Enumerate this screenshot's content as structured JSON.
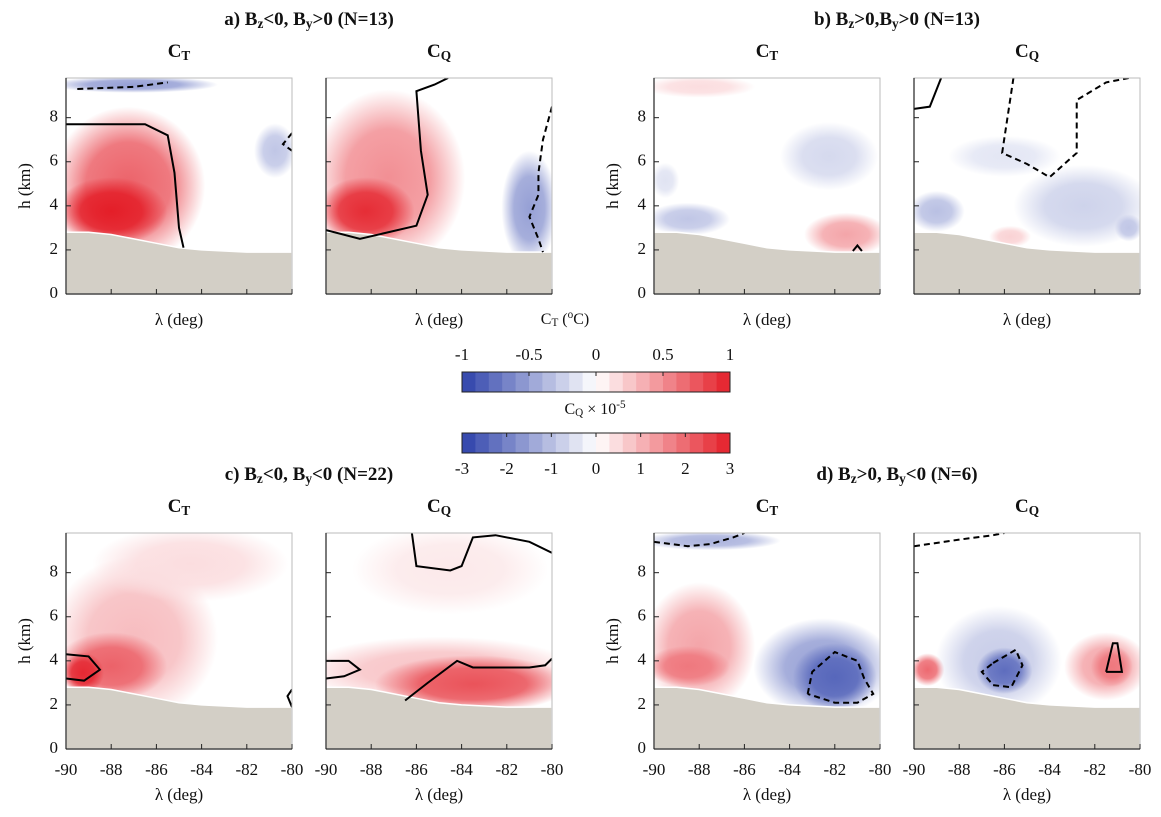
{
  "groups": [
    {
      "title": [
        {
          "text": "a) B"
        },
        {
          "sub": "z"
        },
        {
          "text": "<0, B"
        },
        {
          "sub": "y"
        },
        {
          "text": ">0 (N=13)"
        }
      ]
    },
    {
      "title": [
        {
          "text": "b) B"
        },
        {
          "sub": "z"
        },
        {
          "text": ">0,B"
        },
        {
          "sub": "y"
        },
        {
          "text": ">0 (N=13)"
        }
      ]
    },
    {
      "title": [
        {
          "text": "c) B"
        },
        {
          "sub": "z"
        },
        {
          "text": "<0, B"
        },
        {
          "sub": "y"
        },
        {
          "text": "<0 (N=22)"
        }
      ]
    },
    {
      "title": [
        {
          "text": "d) B"
        },
        {
          "sub": "z"
        },
        {
          "text": ">0, B"
        },
        {
          "sub": "y"
        },
        {
          "text": "<0 (N=6)"
        }
      ]
    }
  ],
  "colorbars": [
    {
      "label": [
        {
          "text": "C"
        },
        {
          "sub": "T"
        },
        {
          "text": " ("
        },
        {
          "sup": "o"
        },
        {
          "text": "C)"
        }
      ],
      "clim": [
        -1,
        1
      ],
      "ticks": [
        -1,
        -0.5,
        0,
        0.5,
        1
      ]
    },
    {
      "label": [
        {
          "text": "C"
        },
        {
          "sub": "Q"
        },
        {
          "text": " × 10"
        },
        {
          "sup": "-5"
        }
      ],
      "clim": [
        -3,
        3
      ],
      "ticks": [
        -3,
        -2,
        -1,
        0,
        1,
        2,
        3
      ]
    }
  ],
  "terrain": {
    "x": [
      -90,
      -89,
      -88,
      -87,
      -86,
      -85,
      -84,
      -83,
      -82,
      -81,
      -80
    ],
    "h": [
      2.8,
      2.8,
      2.7,
      2.5,
      2.3,
      2.1,
      2.0,
      1.95,
      1.9,
      1.9,
      1.9
    ]
  },
  "chart_data": [
    {
      "type": "contour",
      "title": [
        {
          "text": "C"
        },
        {
          "sub": "T"
        }
      ],
      "colorbar": 0,
      "xlabel": "λ (deg)",
      "ylabel": "h (km)",
      "xlim": [
        -90,
        -80
      ],
      "ylim": [
        0,
        9.8
      ],
      "xticks": [
        -90,
        -88,
        -86,
        -84,
        -82,
        -80
      ],
      "yticks": [
        0,
        2,
        4,
        6,
        8
      ],
      "xtick_labels": false,
      "ytick_labels": true,
      "blobs": [
        {
          "x": [
            -90,
            -84.5
          ],
          "y": [
            2,
            7.8
          ],
          "value": 0.7
        },
        {
          "x": [
            -90,
            -86
          ],
          "y": [
            2.5,
            5
          ],
          "value": 1.0
        },
        {
          "x": [
            -90,
            -84
          ],
          "y": [
            9.2,
            9.8
          ],
          "value": -0.5
        },
        {
          "x": [
            -81.5,
            -80
          ],
          "y": [
            5.5,
            7.5
          ],
          "value": -0.3
        }
      ],
      "contours": [
        {
          "style": "solid",
          "x": [
            -90,
            -86.5,
            -85.5,
            -85.2,
            -85.0,
            -84.8
          ],
          "y": [
            7.7,
            7.7,
            7.2,
            5.5,
            3,
            2.1
          ]
        },
        {
          "style": "dashed",
          "x": [
            -89.5,
            -87,
            -85.5
          ],
          "y": [
            9.3,
            9.4,
            9.6
          ]
        },
        {
          "style": "dashed",
          "x": [
            -80,
            -80.4,
            -80
          ],
          "y": [
            7.3,
            6.8,
            6.5
          ]
        }
      ]
    },
    {
      "type": "contour",
      "title": [
        {
          "text": "C"
        },
        {
          "sub": "Q"
        }
      ],
      "colorbar": 1,
      "xlabel": "λ (deg)",
      "xlim": [
        -90,
        -80
      ],
      "ylim": [
        0,
        9.8
      ],
      "xticks": [
        -90,
        -88,
        -86,
        -84,
        -82,
        -80
      ],
      "yticks": [
        0,
        2,
        4,
        6,
        8
      ],
      "xtick_labels": false,
      "ytick_labels": false,
      "blobs": [
        {
          "x": [
            -90,
            -84.5
          ],
          "y": [
            2,
            8.5
          ],
          "value": 1.5
        },
        {
          "x": [
            -90,
            -86.5
          ],
          "y": [
            2.5,
            5
          ],
          "value": 2.8
        },
        {
          "x": [
            -82,
            -80
          ],
          "y": [
            1.8,
            6
          ],
          "value": -1.5
        }
      ],
      "contours": [
        {
          "style": "solid",
          "x": [
            -90,
            -88.5,
            -86,
            -85.5,
            -85.8,
            -86,
            -85.2,
            -84.6
          ],
          "y": [
            2.9,
            2.5,
            3.1,
            4.5,
            6.5,
            9.2,
            9.5,
            9.8
          ]
        },
        {
          "style": "dashed",
          "x": [
            -80,
            -80.4,
            -80.6,
            -80.6,
            -81,
            -80.6,
            -80.4
          ],
          "y": [
            8.5,
            7,
            5.5,
            4.5,
            3.5,
            2.5,
            1.9
          ]
        }
      ]
    },
    {
      "type": "contour",
      "title": [
        {
          "text": "C"
        },
        {
          "sub": "T"
        }
      ],
      "colorbar": 0,
      "xlabel": "λ (deg)",
      "ylabel": "h (km)",
      "xlim": [
        -90,
        -80
      ],
      "ylim": [
        0,
        9.8
      ],
      "xticks": [
        -90,
        -88,
        -86,
        -84,
        -82,
        -80
      ],
      "yticks": [
        0,
        2,
        4,
        6,
        8
      ],
      "xtick_labels": false,
      "ytick_labels": true,
      "blobs": [
        {
          "x": [
            -84,
            -80.5
          ],
          "y": [
            5,
            7.5
          ],
          "value": -0.2
        },
        {
          "x": [
            -90,
            -87
          ],
          "y": [
            2.8,
            4
          ],
          "value": -0.3
        },
        {
          "x": [
            -83,
            -80
          ],
          "y": [
            1.9,
            3.5
          ],
          "value": 0.4
        },
        {
          "x": [
            -90,
            -86
          ],
          "y": [
            9,
            9.8
          ],
          "value": 0.15
        },
        {
          "x": [
            -90,
            -89
          ],
          "y": [
            4.5,
            5.8
          ],
          "value": -0.15
        }
      ],
      "contours": [
        {
          "style": "solid",
          "x": [
            -81.2,
            -81,
            -80.8
          ],
          "y": [
            1.95,
            2.2,
            1.95
          ]
        }
      ]
    },
    {
      "type": "contour",
      "title": [
        {
          "text": "C"
        },
        {
          "sub": "Q"
        }
      ],
      "colorbar": 1,
      "xlabel": "λ (deg)",
      "xlim": [
        -90,
        -80
      ],
      "ylim": [
        0,
        9.8
      ],
      "xticks": [
        -90,
        -88,
        -86,
        -84,
        -82,
        -80
      ],
      "yticks": [
        0,
        2,
        4,
        6,
        8
      ],
      "xtick_labels": false,
      "ytick_labels": false,
      "blobs": [
        {
          "x": [
            -90,
            -88
          ],
          "y": [
            3,
            4.5
          ],
          "value": -1
        },
        {
          "x": [
            -85,
            -80
          ],
          "y": [
            2.5,
            5.5
          ],
          "value": -0.7
        },
        {
          "x": [
            -88,
            -84
          ],
          "y": [
            5.5,
            7
          ],
          "value": -0.4
        },
        {
          "x": [
            -86.5,
            -85
          ],
          "y": [
            2.2,
            3
          ],
          "value": 0.6
        },
        {
          "x": [
            -81,
            -80
          ],
          "y": [
            2.5,
            3.5
          ],
          "value": -0.9
        }
      ],
      "contours": [
        {
          "style": "solid",
          "x": [
            -90,
            -89.3,
            -88.8
          ],
          "y": [
            8.4,
            8.5,
            9.8
          ]
        },
        {
          "style": "dashed",
          "x": [
            -85.6,
            -86.1,
            -85,
            -84,
            -82.8,
            -82.8,
            -81.5,
            -80.5
          ],
          "y": [
            9.8,
            6.4,
            5.9,
            5.3,
            6.4,
            8.8,
            9.6,
            9.8
          ]
        }
      ]
    },
    {
      "type": "contour",
      "title": [
        {
          "text": "C"
        },
        {
          "sub": "T"
        }
      ],
      "colorbar": 0,
      "xlabel": "λ (deg)",
      "ylabel": "h (km)",
      "xlim": [
        -90,
        -80
      ],
      "ylim": [
        0,
        9.8
      ],
      "xticks": [
        -90,
        -88,
        -86,
        -84,
        -82,
        -80
      ],
      "yticks": [
        0,
        2,
        4,
        6,
        8
      ],
      "xtick_labels": true,
      "ytick_labels": true,
      "blobs": [
        {
          "x": [
            -90,
            -84
          ],
          "y": [
            2,
            8
          ],
          "value": 0.3
        },
        {
          "x": [
            -90,
            -86
          ],
          "y": [
            2.5,
            5
          ],
          "value": 0.7
        },
        {
          "x": [
            -90,
            -88.5
          ],
          "y": [
            2.7,
            4.2
          ],
          "value": 0.95
        },
        {
          "x": [
            -88,
            -81
          ],
          "y": [
            7,
            9.8
          ],
          "value": 0.15
        }
      ],
      "contours": [
        {
          "style": "solid",
          "x": [
            -90,
            -89,
            -88.5,
            -89.2,
            -90
          ],
          "y": [
            4.3,
            4.2,
            3.6,
            3.1,
            3.2
          ]
        },
        {
          "style": "solid",
          "x": [
            -80,
            -80.2,
            -80
          ],
          "y": [
            2.7,
            2.4,
            1.9
          ]
        }
      ]
    },
    {
      "type": "contour",
      "title": [
        {
          "text": "C"
        },
        {
          "sub": "Q"
        }
      ],
      "colorbar": 1,
      "xlabel": "λ (deg)",
      "xlim": [
        -90,
        -80
      ],
      "ylim": [
        0,
        9.8
      ],
      "xticks": [
        -90,
        -88,
        -86,
        -84,
        -82,
        -80
      ],
      "yticks": [
        0,
        2,
        4,
        6,
        8
      ],
      "xtick_labels": true,
      "ytick_labels": false,
      "blobs": [
        {
          "x": [
            -90,
            -80
          ],
          "y": [
            2.3,
            4.8
          ],
          "value": 0.8
        },
        {
          "x": [
            -87,
            -80
          ],
          "y": [
            1.9,
            4
          ],
          "value": 2.3
        },
        {
          "x": [
            -88,
            -81
          ],
          "y": [
            6.5,
            9.8
          ],
          "value": 0.3
        }
      ],
      "contours": [
        {
          "style": "solid",
          "x": [
            -90,
            -89,
            -88.5,
            -89.2,
            -90
          ],
          "y": [
            4,
            4,
            3.6,
            3.3,
            3.2
          ]
        },
        {
          "style": "solid",
          "x": [
            -86.5,
            -85.5,
            -84.2,
            -83.5,
            -81,
            -80.3,
            -80
          ],
          "y": [
            2.2,
            3,
            4,
            3.7,
            3.7,
            3.8,
            4.1
          ]
        },
        {
          "style": "solid",
          "x": [
            -86.2,
            -86,
            -84.5,
            -84,
            -83.5,
            -82.5,
            -81,
            -80
          ],
          "y": [
            9.8,
            8.3,
            8.1,
            8.3,
            9.6,
            9.7,
            9.4,
            8.9
          ]
        }
      ]
    },
    {
      "type": "contour",
      "title": [
        {
          "text": "C"
        },
        {
          "sub": "T"
        }
      ],
      "colorbar": 0,
      "xlabel": "λ (deg)",
      "ylabel": "h (km)",
      "xlim": [
        -90,
        -80
      ],
      "ylim": [
        0,
        9.8
      ],
      "xticks": [
        -90,
        -88,
        -86,
        -84,
        -82,
        -80
      ],
      "yticks": [
        0,
        2,
        4,
        6,
        8
      ],
      "xtick_labels": true,
      "ytick_labels": true,
      "blobs": [
        {
          "x": [
            -90,
            -86
          ],
          "y": [
            2.3,
            7
          ],
          "value": 0.4
        },
        {
          "x": [
            -90,
            -87
          ],
          "y": [
            3,
            4.5
          ],
          "value": 0.6
        },
        {
          "x": [
            -85,
            -80
          ],
          "y": [
            1.9,
            5.5
          ],
          "value": -0.5
        },
        {
          "x": [
            -83.5,
            -80.5
          ],
          "y": [
            2,
            4.5
          ],
          "value": -0.8
        },
        {
          "x": [
            -90,
            -85
          ],
          "y": [
            9.1,
            9.8
          ],
          "value": -0.4
        }
      ],
      "contours": [
        {
          "style": "dashed",
          "x": [
            -90,
            -88.5,
            -87.5,
            -86.5,
            -86
          ],
          "y": [
            9.4,
            9.2,
            9.3,
            9.6,
            9.8
          ]
        },
        {
          "style": "dashed",
          "x": [
            -83.2,
            -83,
            -82,
            -81,
            -80.7,
            -80.3,
            -81,
            -82,
            -83.2
          ],
          "y": [
            2.5,
            3.5,
            4.4,
            4,
            3.2,
            2.5,
            2.1,
            2.1,
            2.5
          ]
        }
      ]
    },
    {
      "type": "contour",
      "title": [
        {
          "text": "C"
        },
        {
          "sub": "Q"
        }
      ],
      "colorbar": 1,
      "xlabel": "λ (deg)",
      "xlim": [
        -90,
        -80
      ],
      "ylim": [
        0,
        9.8
      ],
      "xticks": [
        -90,
        -88,
        -86,
        -84,
        -82,
        -80
      ],
      "yticks": [
        0,
        2,
        4,
        6,
        8
      ],
      "xtick_labels": true,
      "ytick_labels": false,
      "blobs": [
        {
          "x": [
            -90,
            -88.8
          ],
          "y": [
            3,
            4.2
          ],
          "value": 2
        },
        {
          "x": [
            -83,
            -80
          ],
          "y": [
            2.5,
            5
          ],
          "value": 1.2
        },
        {
          "x": [
            -82,
            -80.5
          ],
          "y": [
            3,
            4.5
          ],
          "value": 1.8
        },
        {
          "x": [
            -88.5,
            -84
          ],
          "y": [
            2,
            6
          ],
          "value": -0.8
        },
        {
          "x": [
            -87,
            -85
          ],
          "y": [
            2.7,
            4.4
          ],
          "value": -2.3
        }
      ],
      "contours": [
        {
          "style": "dashed",
          "x": [
            -90,
            -88,
            -86.5,
            -86
          ],
          "y": [
            9.2,
            9.5,
            9.7,
            9.8
          ]
        },
        {
          "style": "dashed",
          "x": [
            -86.5,
            -85.5,
            -85.2,
            -85.7,
            -86.5,
            -87,
            -86.5
          ],
          "y": [
            3.9,
            4.5,
            3.8,
            2.8,
            2.9,
            3.5,
            3.9
          ]
        },
        {
          "style": "solid",
          "x": [
            -81.5,
            -81.2,
            -81,
            -80.8,
            -81.5
          ],
          "y": [
            3.5,
            4.8,
            4.8,
            3.5,
            3.5
          ]
        }
      ]
    }
  ]
}
